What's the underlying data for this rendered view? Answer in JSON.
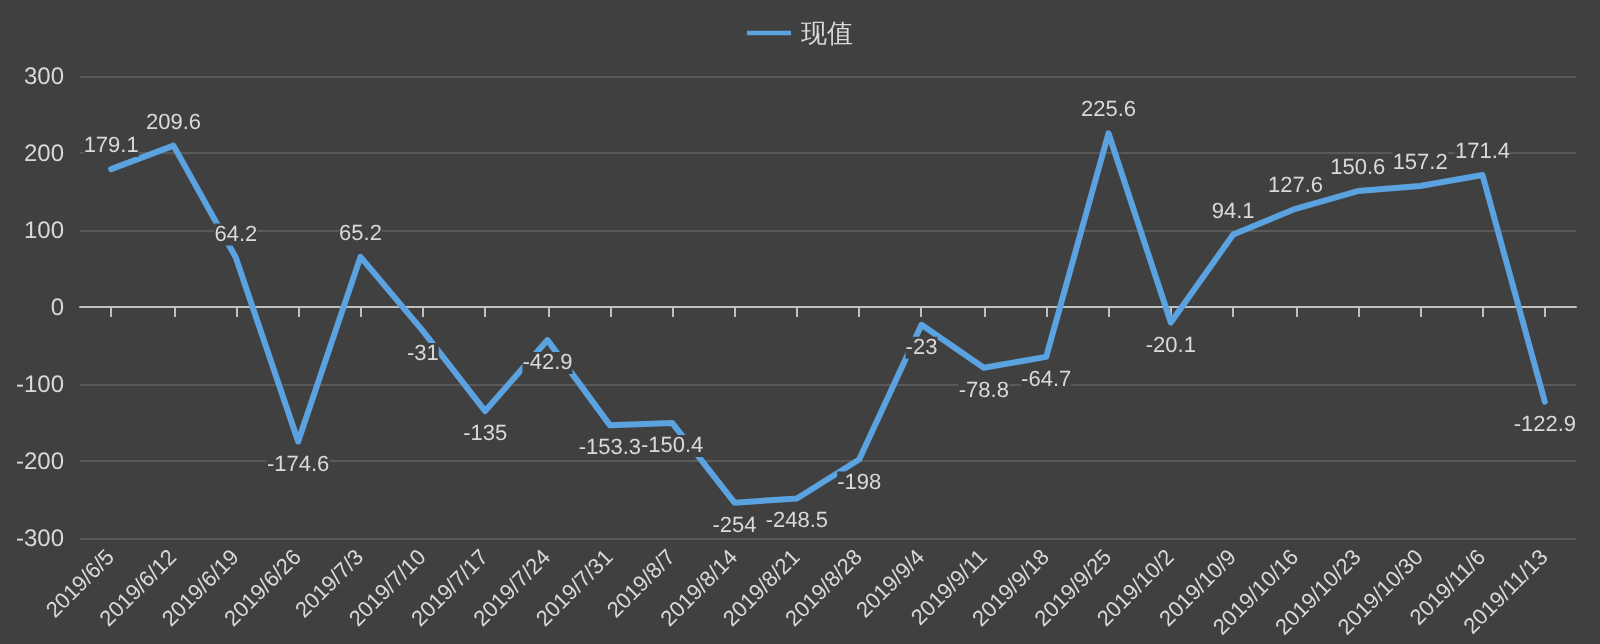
{
  "chart_data": {
    "type": "line",
    "categories": [
      "2019/6/5",
      "2019/6/12",
      "2019/6/19",
      "2019/6/26",
      "2019/7/3",
      "2019/7/10",
      "2019/7/17",
      "2019/7/24",
      "2019/7/31",
      "2019/8/7",
      "2019/8/14",
      "2019/8/21",
      "2019/8/28",
      "2019/9/4",
      "2019/9/11",
      "2019/9/18",
      "2019/9/25",
      "2019/10/2",
      "2019/10/9",
      "2019/10/16",
      "2019/10/23",
      "2019/10/30",
      "2019/11/6",
      "2019/11/13"
    ],
    "series": [
      {
        "name": "现值",
        "color": "#5ba3e0",
        "values": [
          179.1,
          209.6,
          64.2,
          -174.6,
          65.2,
          -31,
          -135,
          -42.9,
          -153.3,
          -150.4,
          -254,
          -248.5,
          -198,
          -23,
          -78.8,
          -64.7,
          225.6,
          -20.1,
          94.1,
          127.6,
          150.6,
          157.2,
          171.4,
          -122.9
        ]
      }
    ],
    "ylim": [
      -300,
      300
    ],
    "yticks": [
      -300,
      -200,
      -100,
      0,
      100,
      200,
      300
    ],
    "grid": "y",
    "legend": "top",
    "marker": "none",
    "line_style": "solid",
    "data_labels": true
  }
}
